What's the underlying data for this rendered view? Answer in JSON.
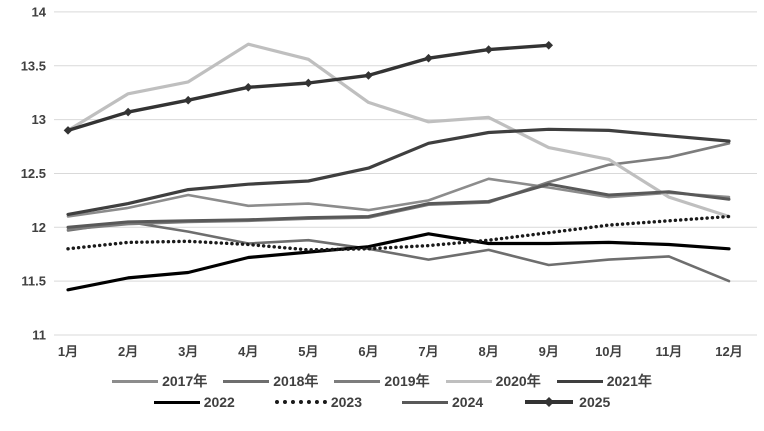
{
  "chart_data": {
    "type": "line",
    "title": "",
    "xlabel": "",
    "ylabel": "",
    "categories": [
      "1月",
      "2月",
      "3月",
      "4月",
      "5月",
      "6月",
      "7月",
      "8月",
      "9月",
      "10月",
      "11月",
      "12月"
    ],
    "y_ticks": [
      "14",
      "13.5",
      "13",
      "12.5",
      "12",
      "11.5",
      "11"
    ],
    "y_tick_values": [
      14,
      13.5,
      13,
      12.5,
      12,
      11.5,
      11
    ],
    "ylim": [
      11,
      14
    ],
    "grid": true,
    "legend_position": "bottom",
    "gridline_color": "#d9d9d9",
    "series": [
      {
        "name": "2017年",
        "color": "#8c8c8c",
        "style": "solid",
        "width": 2.6,
        "marker": "none",
        "values": [
          12.1,
          12.18,
          12.3,
          12.2,
          12.22,
          12.16,
          12.25,
          12.45,
          12.37,
          12.28,
          12.32,
          12.28
        ]
      },
      {
        "name": "2018年",
        "color": "#6e6e6e",
        "style": "solid",
        "width": 2.6,
        "marker": "none",
        "values": [
          11.97,
          12.05,
          11.96,
          11.85,
          11.88,
          11.8,
          11.7,
          11.79,
          11.65,
          11.7,
          11.73,
          11.5
        ]
      },
      {
        "name": "2019年",
        "color": "#7d7d7d",
        "style": "solid",
        "width": 2.6,
        "marker": "none",
        "values": [
          11.98,
          12.03,
          12.05,
          12.06,
          12.08,
          12.09,
          12.21,
          12.23,
          12.42,
          12.58,
          12.65,
          12.78
        ]
      },
      {
        "name": "2020年",
        "color": "#bfbfbf",
        "style": "solid",
        "width": 3.2,
        "marker": "none",
        "values": [
          12.9,
          13.24,
          13.35,
          13.7,
          13.56,
          13.16,
          12.98,
          13.02,
          12.74,
          12.63,
          12.28,
          12.1
        ]
      },
      {
        "name": "2021年",
        "color": "#3f3f3f",
        "style": "solid",
        "width": 3.2,
        "marker": "none",
        "values": [
          12.12,
          12.22,
          12.35,
          12.4,
          12.43,
          12.55,
          12.78,
          12.88,
          12.91,
          12.9,
          12.85,
          12.8
        ]
      },
      {
        "name": "2022",
        "color": "#000000",
        "style": "solid",
        "width": 3.2,
        "marker": "none",
        "values": [
          11.42,
          11.53,
          11.58,
          11.72,
          11.77,
          11.82,
          11.94,
          11.85,
          11.85,
          11.86,
          11.84,
          11.8
        ]
      },
      {
        "name": "2023",
        "color": "#1a1a1a",
        "style": "dotted",
        "width": 3.4,
        "marker": "none",
        "values": [
          11.8,
          11.86,
          11.87,
          11.84,
          11.79,
          11.8,
          11.83,
          11.88,
          11.95,
          12.02,
          12.06,
          12.1
        ]
      },
      {
        "name": "2024",
        "color": "#595959",
        "style": "solid",
        "width": 3.0,
        "marker": "none",
        "values": [
          12.0,
          12.05,
          12.06,
          12.07,
          12.09,
          12.1,
          12.22,
          12.24,
          12.4,
          12.3,
          12.33,
          12.26
        ]
      },
      {
        "name": "2025",
        "color": "#333333",
        "style": "solid",
        "width": 3.4,
        "marker": "diamond",
        "values": [
          12.9,
          13.07,
          13.18,
          13.3,
          13.34,
          13.41,
          13.57,
          13.65,
          13.69
        ]
      }
    ],
    "legend_rows": [
      [
        "2017年",
        "2018年",
        "2019年",
        "2020年",
        "2021年"
      ],
      [
        "2022",
        "2023",
        "2024",
        "2025"
      ]
    ]
  }
}
